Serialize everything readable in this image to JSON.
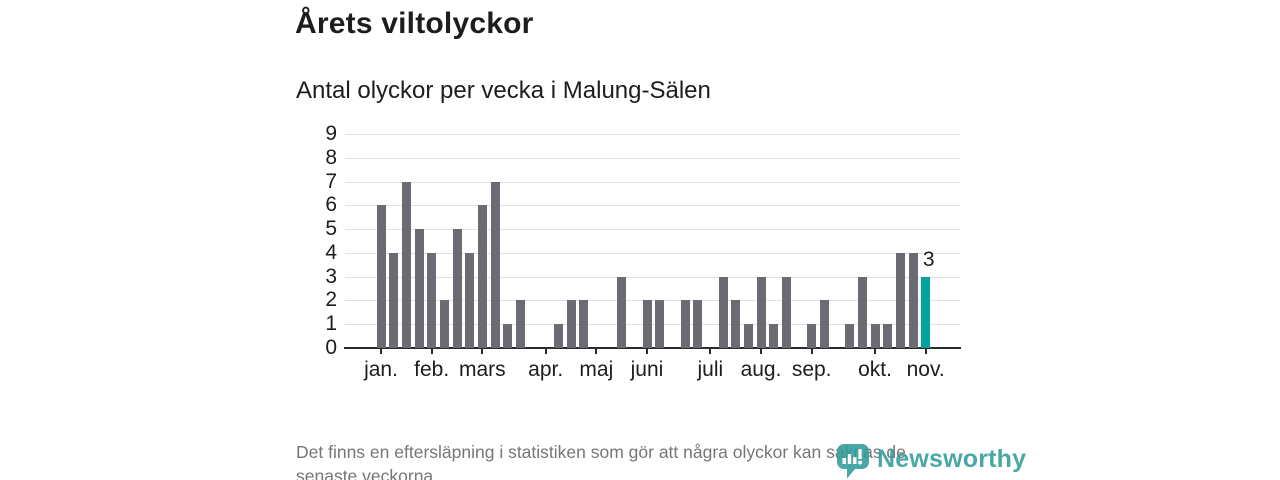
{
  "header": {
    "title": "Årets viltolyckor",
    "subtitle": "Antal olyckor per vecka i Malung-Sälen"
  },
  "footer": {
    "line1": "Det finns en eftersläpning i statistiken som gör att några olyckor kan saknas de",
    "line2": "senaste veckorna."
  },
  "logo": {
    "name": "Newsworthy",
    "icon": "newsworthy-pin-barchart-icon",
    "color": "#2f9c98"
  },
  "colors": {
    "bar": "#6b6b73",
    "highlight": "#00a49c",
    "grid": "#e1e1e1",
    "axis": "#2b2b2b",
    "text": "#1d1d1b",
    "muted": "#767676"
  },
  "chart_data": {
    "type": "bar",
    "title": "Årets viltolyckor",
    "subtitle": "Antal olyckor per vecka i Malung-Sälen",
    "x_unit": "vecka (week of year)",
    "ylabel": "Antal olyckor",
    "ylim": [
      0,
      9
    ],
    "yticks": [
      0,
      1,
      2,
      3,
      4,
      5,
      6,
      7,
      8,
      9
    ],
    "grid": true,
    "values_by_week": [
      6,
      4,
      7,
      5,
      4,
      2,
      5,
      4,
      6,
      7,
      1,
      2,
      0,
      0,
      1,
      2,
      2,
      0,
      0,
      3,
      0,
      2,
      2,
      0,
      2,
      2,
      0,
      3,
      2,
      1,
      3,
      1,
      3,
      0,
      1,
      2,
      0,
      1,
      3,
      1,
      1,
      4,
      4,
      3
    ],
    "weeks_domain": [
      1,
      46
    ],
    "months": [
      {
        "label": "jan.",
        "week": 1
      },
      {
        "label": "feb.",
        "week": 5
      },
      {
        "label": "mars",
        "week": 9
      },
      {
        "label": "apr.",
        "week": 14
      },
      {
        "label": "maj",
        "week": 18
      },
      {
        "label": "juni",
        "week": 22
      },
      {
        "label": "juli",
        "week": 27
      },
      {
        "label": "aug.",
        "week": 31
      },
      {
        "label": "sep.",
        "week": 35
      },
      {
        "label": "okt.",
        "week": 40
      },
      {
        "label": "nov.",
        "week": 44
      }
    ],
    "highlight": {
      "week": 44,
      "value": 3,
      "label": "3"
    }
  }
}
